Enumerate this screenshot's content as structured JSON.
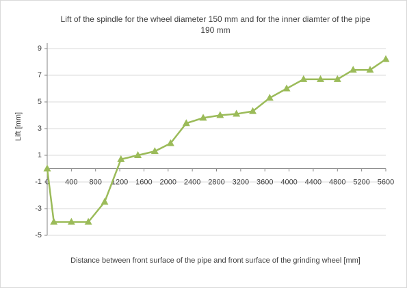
{
  "chart_data": {
    "type": "line",
    "title": "Lift of the spindle for  the wheel diameter 150 mm and for the inner diamter of the pipe 190 mm",
    "xlabel": "Distance between front surface of the pipe and front surface of the grinding wheel [mm]",
    "ylabel": "Lift [mm]",
    "x": [
      0,
      110,
      400,
      680,
      950,
      1220,
      1500,
      1780,
      2040,
      2300,
      2580,
      2860,
      3130,
      3400,
      3680,
      3960,
      4240,
      4520,
      4800,
      5060,
      5340,
      5600
    ],
    "series": [
      {
        "color": "#9bbb59",
        "values": [
          0,
          -4,
          -4,
          -4,
          -2.5,
          0.7,
          1,
          1.3,
          1.9,
          3.4,
          3.8,
          4,
          4.1,
          4.3,
          5.3,
          6,
          6.7,
          6.7,
          6.7,
          7.4,
          7.4,
          8.2
        ]
      }
    ],
    "xlim": [
      0,
      5600
    ],
    "xticks": [
      0,
      400,
      800,
      1200,
      1600,
      2000,
      2400,
      2800,
      3200,
      3600,
      4000,
      4400,
      4800,
      5200,
      5600
    ],
    "ylim": [
      -5,
      9
    ],
    "yticks": [
      -5,
      -3,
      -1,
      1,
      3,
      5,
      7,
      9
    ],
    "grid": true
  }
}
